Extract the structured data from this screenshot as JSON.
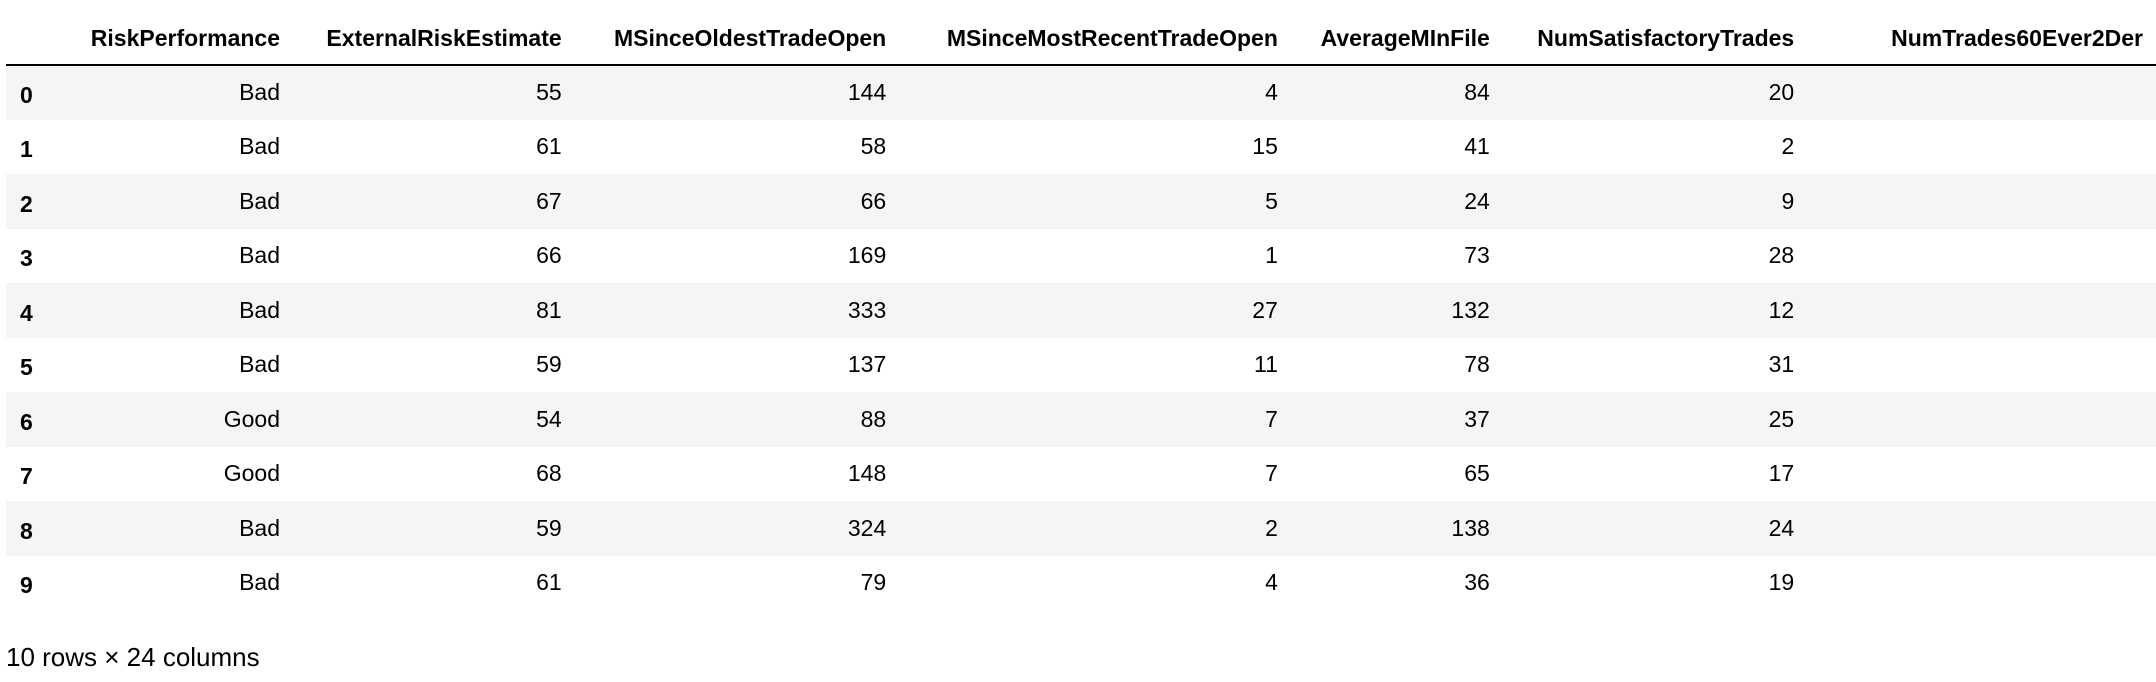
{
  "table": {
    "index_header": "",
    "columns": [
      "RiskPerformance",
      "ExternalRiskEstimate",
      "MSinceOldestTradeOpen",
      "MSinceMostRecentTradeOpen",
      "AverageMInFile",
      "NumSatisfactoryTrades",
      "NumTrades60Ever2Der"
    ],
    "rows": [
      {
        "index": "0",
        "cells": [
          "Bad",
          "55",
          "144",
          "4",
          "84",
          "20",
          ""
        ]
      },
      {
        "index": "1",
        "cells": [
          "Bad",
          "61",
          "58",
          "15",
          "41",
          "2",
          ""
        ]
      },
      {
        "index": "2",
        "cells": [
          "Bad",
          "67",
          "66",
          "5",
          "24",
          "9",
          ""
        ]
      },
      {
        "index": "3",
        "cells": [
          "Bad",
          "66",
          "169",
          "1",
          "73",
          "28",
          ""
        ]
      },
      {
        "index": "4",
        "cells": [
          "Bad",
          "81",
          "333",
          "27",
          "132",
          "12",
          ""
        ]
      },
      {
        "index": "5",
        "cells": [
          "Bad",
          "59",
          "137",
          "11",
          "78",
          "31",
          ""
        ]
      },
      {
        "index": "6",
        "cells": [
          "Good",
          "54",
          "88",
          "7",
          "37",
          "25",
          ""
        ]
      },
      {
        "index": "7",
        "cells": [
          "Good",
          "68",
          "148",
          "7",
          "65",
          "17",
          ""
        ]
      },
      {
        "index": "8",
        "cells": [
          "Bad",
          "59",
          "324",
          "2",
          "138",
          "24",
          ""
        ]
      },
      {
        "index": "9",
        "cells": [
          "Bad",
          "61",
          "79",
          "4",
          "36",
          "19",
          ""
        ]
      }
    ]
  },
  "footer": {
    "shape_text": "10 rows × 24 columns"
  }
}
